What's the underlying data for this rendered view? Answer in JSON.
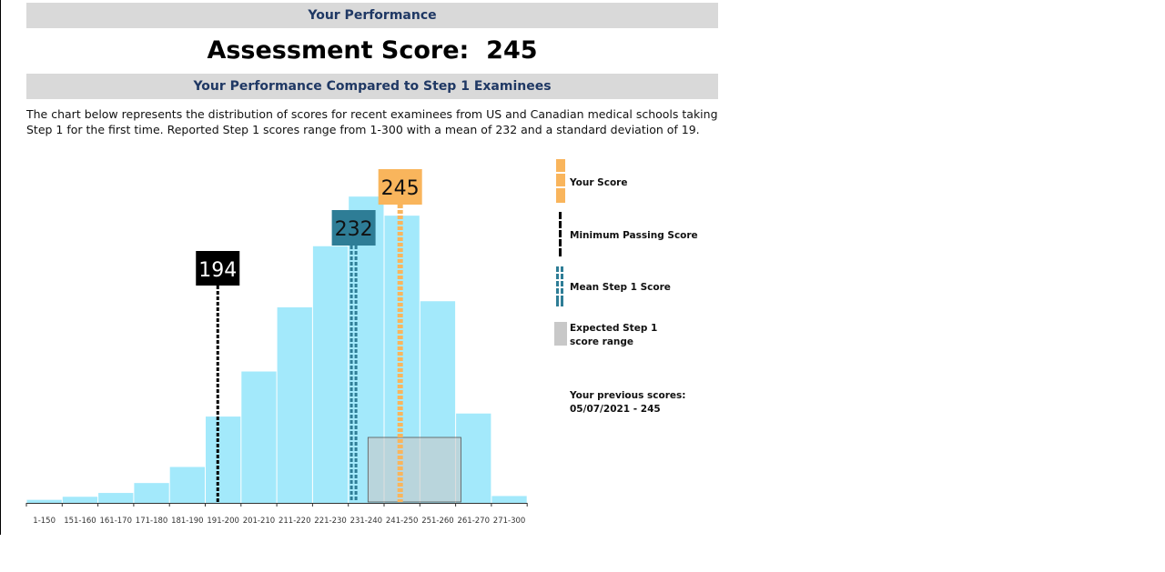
{
  "header": {
    "performance_title": "Your Performance",
    "score_label": "Assessment Score:",
    "score_value": "245",
    "compare_title": "Your Performance Compared to Step 1 Examinees",
    "description": "The chart below represents the distribution of scores for recent examinees from US and Canadian medical schools taking Step 1 for the first time. Reported Step 1 scores range from 1-300 with a mean of 232 and a standard deviation of 19."
  },
  "colors": {
    "band_bg": "#d9d9d9",
    "band_text": "#1f3864",
    "bar_fill": "#a3e9fb",
    "your_score": "#f9b55c",
    "min_pass": "#000000",
    "mean": "#2e7d96",
    "expected_range": "#c8c8c8"
  },
  "chart_data": {
    "type": "bar",
    "categories": [
      "1-150",
      "151-160",
      "161-170",
      "171-180",
      "181-190",
      "191-200",
      "201-210",
      "211-220",
      "221-230",
      "231-240",
      "241-250",
      "251-260",
      "261-270",
      "271-300"
    ],
    "values": [
      0.4,
      0.8,
      1.3,
      2.6,
      4.7,
      11.3,
      17.2,
      25.6,
      33.6,
      40.1,
      37.6,
      26.4,
      11.7,
      0.9
    ],
    "ylim": [
      0,
      45
    ],
    "markers": {
      "your_score": {
        "value": 245,
        "label": "245"
      },
      "min_passing": {
        "value": 194,
        "label": "194"
      },
      "mean": {
        "value": 232,
        "label": "232"
      }
    },
    "expected_range": [
      236,
      262
    ],
    "legend": {
      "your_score": "Your Score",
      "min_passing": "Minimum Passing Score",
      "mean": "Mean Step 1 Score",
      "expected_range": "Expected Step 1 score range"
    }
  },
  "previous_scores": {
    "label": "Your previous scores:",
    "entries": [
      "05/07/2021 - 245"
    ]
  }
}
